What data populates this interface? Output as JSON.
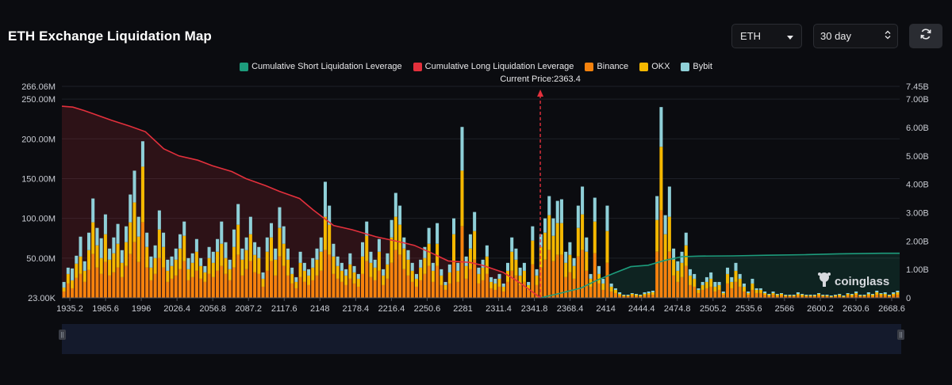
{
  "title": "ETH Exchange Liquidation Map",
  "controls": {
    "asset": "ETH",
    "range": "30 day"
  },
  "legend": [
    {
      "label": "Cumulative Short Liquidation Leverage",
      "color": "#1d9c7c"
    },
    {
      "label": "Cumulative Long Liquidation Leverage",
      "color": "#e3303c"
    },
    {
      "label": "Binance",
      "color": "#f5820d"
    },
    {
      "label": "OKX",
      "color": "#f5b800"
    },
    {
      "label": "Bybit",
      "color": "#8fd0d8"
    }
  ],
  "watermark": "coinglass",
  "chart_data": {
    "type": "bar",
    "current_price_label": "Current Price:2363.4",
    "current_price": 2363.4,
    "x_tick_labels": [
      "1935.2",
      "1965.6",
      "1996",
      "2026.4",
      "2056.8",
      "2087.2",
      "2117.6",
      "2148",
      "2178.4",
      "2216.4",
      "2250.6",
      "2281",
      "2311.4",
      "2341.8",
      "2368.4",
      "2414",
      "2444.4",
      "2474.8",
      "2505.2",
      "2535.6",
      "2566",
      "2600.2",
      "2630.6",
      "2668.6"
    ],
    "y_left_ticks": [
      "266.06M",
      "250.00M",
      "200.00M",
      "150.00M",
      "100.00M",
      "50.00M",
      "23.00K"
    ],
    "y_left_values": [
      266060000,
      250000000,
      200000000,
      150000000,
      100000000,
      50000000,
      23000
    ],
    "y_left_lim": [
      0,
      266060000
    ],
    "y_right_ticks": [
      "7.45B",
      "7.00B",
      "6.00B",
      "5.00B",
      "4.00B",
      "3.00B",
      "2.00B",
      "1.00B",
      "0"
    ],
    "y_right_values": [
      7450000000,
      7000000000,
      6000000000,
      5000000000,
      4000000000,
      3000000000,
      2000000000,
      1000000000,
      0
    ],
    "y_right_lim": [
      0,
      7450000000
    ],
    "bar_x_range": [
      1935.2,
      2685
    ],
    "bars_M": [
      [
        8,
        5,
        7
      ],
      [
        18,
        12,
        8
      ],
      [
        12,
        10,
        15
      ],
      [
        25,
        18,
        10
      ],
      [
        30,
        22,
        25
      ],
      [
        20,
        14,
        12
      ],
      [
        35,
        25,
        22
      ],
      [
        55,
        40,
        30
      ],
      [
        38,
        28,
        22
      ],
      [
        30,
        20,
        25
      ],
      [
        45,
        35,
        25
      ],
      [
        28,
        20,
        14
      ],
      [
        32,
        24,
        20
      ],
      [
        38,
        30,
        25
      ],
      [
        26,
        18,
        16
      ],
      [
        40,
        30,
        20
      ],
      [
        55,
        40,
        35
      ],
      [
        70,
        50,
        40
      ],
      [
        45,
        32,
        25
      ],
      [
        95,
        70,
        32
      ],
      [
        38,
        26,
        18
      ],
      [
        22,
        16,
        14
      ],
      [
        30,
        20,
        16
      ],
      [
        50,
        36,
        24
      ],
      [
        38,
        26,
        18
      ],
      [
        20,
        14,
        14
      ],
      [
        24,
        16,
        12
      ],
      [
        28,
        20,
        14
      ],
      [
        36,
        26,
        18
      ],
      [
        46,
        32,
        18
      ],
      [
        22,
        14,
        14
      ],
      [
        26,
        18,
        12
      ],
      [
        34,
        24,
        16
      ],
      [
        24,
        16,
        10
      ],
      [
        20,
        12,
        8
      ],
      [
        30,
        20,
        14
      ],
      [
        26,
        18,
        14
      ],
      [
        34,
        24,
        16
      ],
      [
        40,
        28,
        28
      ],
      [
        30,
        20,
        20
      ],
      [
        22,
        14,
        12
      ],
      [
        38,
        26,
        22
      ],
      [
        54,
        38,
        26
      ],
      [
        28,
        20,
        14
      ],
      [
        36,
        24,
        16
      ],
      [
        46,
        34,
        22
      ],
      [
        32,
        22,
        16
      ],
      [
        30,
        20,
        14
      ],
      [
        14,
        10,
        8
      ],
      [
        34,
        24,
        18
      ],
      [
        46,
        30,
        18
      ],
      [
        28,
        20,
        14
      ],
      [
        52,
        36,
        26
      ],
      [
        40,
        28,
        22
      ],
      [
        28,
        20,
        14
      ],
      [
        18,
        12,
        8
      ],
      [
        12,
        8,
        6
      ],
      [
        26,
        18,
        14
      ],
      [
        20,
        14,
        10
      ],
      [
        16,
        12,
        8
      ],
      [
        22,
        16,
        12
      ],
      [
        28,
        20,
        14
      ],
      [
        34,
        24,
        18
      ],
      [
        60,
        42,
        44
      ],
      [
        54,
        38,
        24
      ],
      [
        30,
        22,
        16
      ],
      [
        24,
        16,
        12
      ],
      [
        20,
        14,
        10
      ],
      [
        16,
        12,
        8
      ],
      [
        24,
        18,
        14
      ],
      [
        18,
        14,
        8
      ],
      [
        14,
        10,
        6
      ],
      [
        30,
        22,
        18
      ],
      [
        46,
        32,
        18
      ],
      [
        26,
        18,
        14
      ],
      [
        22,
        16,
        10
      ],
      [
        34,
        24,
        16
      ],
      [
        16,
        12,
        8
      ],
      [
        24,
        18,
        14
      ],
      [
        44,
        32,
        22
      ],
      [
        60,
        42,
        30
      ],
      [
        54,
        38,
        24
      ],
      [
        36,
        26,
        14
      ],
      [
        28,
        20,
        12
      ],
      [
        20,
        14,
        10
      ],
      [
        14,
        10,
        6
      ],
      [
        22,
        16,
        10
      ],
      [
        30,
        20,
        14
      ],
      [
        40,
        28,
        20
      ],
      [
        20,
        14,
        10
      ],
      [
        40,
        28,
        26
      ],
      [
        16,
        12,
        8
      ],
      [
        10,
        6,
        4
      ],
      [
        18,
        14,
        10
      ],
      [
        46,
        34,
        20
      ],
      [
        20,
        14,
        10
      ],
      [
        90,
        70,
        55
      ],
      [
        24,
        16,
        12
      ],
      [
        36,
        26,
        18
      ],
      [
        48,
        36,
        24
      ],
      [
        18,
        12,
        8
      ],
      [
        22,
        16,
        10
      ],
      [
        30,
        22,
        14
      ],
      [
        12,
        8,
        6
      ],
      [
        10,
        8,
        6
      ],
      [
        14,
        10,
        6
      ],
      [
        8,
        6,
        4
      ],
      [
        20,
        14,
        10
      ],
      [
        34,
        24,
        18
      ],
      [
        28,
        20,
        14
      ],
      [
        16,
        12,
        10
      ],
      [
        20,
        14,
        10
      ],
      [
        10,
        6,
        4
      ],
      [
        42,
        30,
        18
      ],
      [
        16,
        12,
        8
      ],
      [
        38,
        26,
        16
      ],
      [
        48,
        34,
        18
      ],
      [
        60,
        44,
        24
      ],
      [
        46,
        32,
        22
      ],
      [
        54,
        40,
        28
      ],
      [
        54,
        40,
        30
      ],
      [
        26,
        18,
        14
      ],
      [
        32,
        22,
        16
      ],
      [
        24,
        16,
        10
      ],
      [
        52,
        36,
        28
      ],
      [
        60,
        45,
        35
      ],
      [
        34,
        24,
        18
      ],
      [
        14,
        10,
        6
      ],
      [
        56,
        40,
        30
      ],
      [
        18,
        12,
        10
      ],
      [
        10,
        8,
        6
      ],
      [
        44,
        40,
        32
      ],
      [
        8,
        6,
        4
      ],
      [
        6,
        4,
        2
      ],
      [
        3,
        2,
        2
      ],
      [
        2,
        1,
        1
      ],
      [
        2,
        1,
        1
      ],
      [
        3,
        2,
        1
      ],
      [
        2,
        2,
        1
      ],
      [
        2,
        1,
        1
      ],
      [
        3,
        2,
        2
      ],
      [
        4,
        2,
        2
      ],
      [
        4,
        3,
        2
      ],
      [
        58,
        40,
        30
      ],
      [
        110,
        80,
        50
      ],
      [
        46,
        34,
        24
      ],
      [
        58,
        44,
        38
      ],
      [
        28,
        20,
        14
      ],
      [
        20,
        14,
        12
      ],
      [
        26,
        18,
        14
      ],
      [
        40,
        26,
        16
      ],
      [
        16,
        12,
        8
      ],
      [
        14,
        10,
        6
      ],
      [
        6,
        4,
        2
      ],
      [
        10,
        6,
        4
      ],
      [
        12,
        8,
        6
      ],
      [
        14,
        10,
        8
      ],
      [
        8,
        6,
        6
      ],
      [
        10,
        6,
        4
      ],
      [
        4,
        2,
        2
      ],
      [
        18,
        12,
        8
      ],
      [
        12,
        8,
        6
      ],
      [
        20,
        14,
        10
      ],
      [
        14,
        10,
        6
      ],
      [
        8,
        6,
        4
      ],
      [
        4,
        2,
        2
      ],
      [
        10,
        8,
        6
      ],
      [
        6,
        4,
        2
      ],
      [
        6,
        4,
        2
      ],
      [
        4,
        2,
        2
      ],
      [
        2,
        2,
        1
      ],
      [
        4,
        2,
        2
      ],
      [
        2,
        2,
        1
      ],
      [
        3,
        2,
        1
      ],
      [
        2,
        1,
        1
      ],
      [
        2,
        1,
        1
      ],
      [
        2,
        1,
        1
      ],
      [
        3,
        2,
        2
      ],
      [
        2,
        2,
        1
      ],
      [
        2,
        1,
        1
      ],
      [
        2,
        1,
        1
      ],
      [
        2,
        1,
        1
      ],
      [
        3,
        2,
        1
      ],
      [
        2,
        1,
        1
      ],
      [
        2,
        1,
        1
      ],
      [
        1,
        1,
        1
      ],
      [
        2,
        1,
        1
      ],
      [
        2,
        2,
        1
      ],
      [
        1,
        1,
        1
      ],
      [
        3,
        2,
        1
      ],
      [
        2,
        2,
        1
      ],
      [
        4,
        2,
        2
      ],
      [
        2,
        1,
        1
      ],
      [
        2,
        1,
        1
      ],
      [
        3,
        2,
        2
      ],
      [
        2,
        2,
        1
      ],
      [
        4,
        3,
        2
      ],
      [
        3,
        2,
        1
      ],
      [
        3,
        2,
        2
      ],
      [
        2,
        1,
        1
      ],
      [
        3,
        2,
        2
      ],
      [
        4,
        3,
        2
      ]
    ],
    "cumulative_long_B": [
      [
        1935.2,
        6.75
      ],
      [
        1945,
        6.72
      ],
      [
        1955,
        6.6
      ],
      [
        1965.6,
        6.45
      ],
      [
        1980,
        6.25
      ],
      [
        1996,
        6.05
      ],
      [
        2010,
        5.85
      ],
      [
        2026.4,
        5.25
      ],
      [
        2040,
        5.0
      ],
      [
        2056.8,
        4.85
      ],
      [
        2070,
        4.65
      ],
      [
        2087.2,
        4.45
      ],
      [
        2100,
        4.2
      ],
      [
        2117.6,
        3.95
      ],
      [
        2130,
        3.75
      ],
      [
        2148,
        3.5
      ],
      [
        2160,
        3.1
      ],
      [
        2178.4,
        2.55
      ],
      [
        2195,
        2.4
      ],
      [
        2216.4,
        2.15
      ],
      [
        2240,
        1.95
      ],
      [
        2250.6,
        1.85
      ],
      [
        2265,
        1.6
      ],
      [
        2281,
        1.3
      ],
      [
        2300,
        1.25
      ],
      [
        2311.4,
        1.15
      ],
      [
        2330,
        0.9
      ],
      [
        2341.8,
        0.62
      ],
      [
        2355,
        0.25
      ],
      [
        2363.4,
        0.0
      ]
    ],
    "cumulative_short_B": [
      [
        2363.4,
        0.0
      ],
      [
        2380,
        0.15
      ],
      [
        2400,
        0.35
      ],
      [
        2414,
        0.62
      ],
      [
        2430,
        0.88
      ],
      [
        2444.4,
        1.1
      ],
      [
        2460,
        1.15
      ],
      [
        2474.8,
        1.32
      ],
      [
        2490,
        1.45
      ],
      [
        2505.2,
        1.47
      ],
      [
        2535.6,
        1.48
      ],
      [
        2566,
        1.5
      ],
      [
        2600.2,
        1.52
      ],
      [
        2630.6,
        1.55
      ],
      [
        2668.6,
        1.57
      ],
      [
        2685,
        1.57
      ]
    ]
  }
}
